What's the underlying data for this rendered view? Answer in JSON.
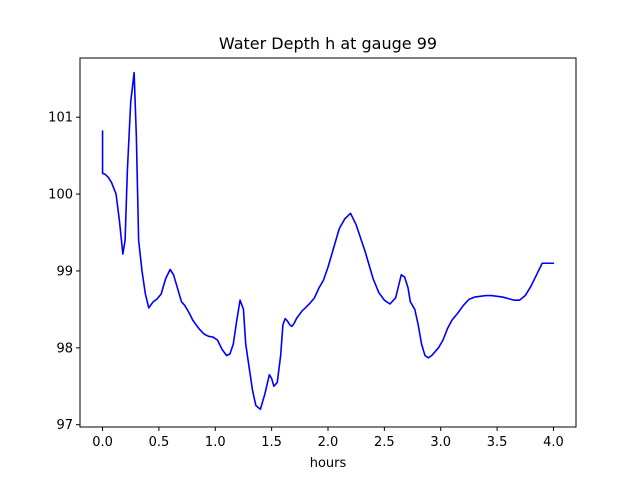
{
  "chart_data": {
    "type": "line",
    "title": "Water Depth h at gauge 99",
    "xlabel": "hours",
    "ylabel": "",
    "xlim": [
      -0.2,
      4.2
    ],
    "ylim": [
      96.97,
      101.77
    ],
    "x_ticks": [
      0.0,
      0.5,
      1.0,
      1.5,
      2.0,
      2.5,
      3.0,
      3.5,
      4.0
    ],
    "x_tick_labels": [
      "0.0",
      "0.5",
      "1.0",
      "1.5",
      "2.0",
      "2.5",
      "3.0",
      "3.5",
      "4.0"
    ],
    "y_ticks": [
      97,
      98,
      99,
      100,
      101
    ],
    "y_tick_labels": [
      "97",
      "98",
      "99",
      "100",
      "101"
    ],
    "grid": false,
    "legend": "none",
    "series": [
      {
        "color": "#0000ff",
        "x": [
          0.0,
          0.0,
          0.02,
          0.05,
          0.08,
          0.12,
          0.15,
          0.18,
          0.2,
          0.22,
          0.25,
          0.28,
          0.3,
          0.32,
          0.35,
          0.38,
          0.41,
          0.45,
          0.48,
          0.52,
          0.56,
          0.6,
          0.63,
          0.66,
          0.7,
          0.73,
          0.77,
          0.8,
          0.83,
          0.86,
          0.9,
          0.94,
          0.98,
          1.02,
          1.06,
          1.1,
          1.13,
          1.16,
          1.19,
          1.22,
          1.25,
          1.27,
          1.29,
          1.31,
          1.33,
          1.36,
          1.4,
          1.44,
          1.48,
          1.5,
          1.52,
          1.55,
          1.58,
          1.6,
          1.62,
          1.64,
          1.66,
          1.68,
          1.7,
          1.72,
          1.74,
          1.77,
          1.8,
          1.84,
          1.88,
          1.92,
          1.96,
          2.0,
          2.05,
          2.1,
          2.15,
          2.2,
          2.25,
          2.3,
          2.33,
          2.36,
          2.4,
          2.45,
          2.5,
          2.55,
          2.6,
          2.65,
          2.68,
          2.71,
          2.73,
          2.75,
          2.77,
          2.8,
          2.83,
          2.86,
          2.89,
          2.92,
          2.95,
          2.98,
          3.02,
          3.06,
          3.1,
          3.15,
          3.2,
          3.25,
          3.3,
          3.35,
          3.4,
          3.45,
          3.5,
          3.55,
          3.6,
          3.65,
          3.7,
          3.75,
          3.8,
          3.85,
          3.9,
          3.95,
          4.0
        ],
        "y": [
          100.82,
          100.27,
          100.26,
          100.22,
          100.15,
          100.0,
          99.65,
          99.22,
          99.4,
          100.3,
          101.2,
          101.58,
          100.75,
          99.4,
          99.0,
          98.7,
          98.52,
          98.6,
          98.63,
          98.7,
          98.9,
          99.02,
          98.95,
          98.8,
          98.6,
          98.55,
          98.45,
          98.36,
          98.3,
          98.24,
          98.18,
          98.15,
          98.14,
          98.1,
          97.98,
          97.9,
          97.92,
          98.05,
          98.35,
          98.62,
          98.5,
          98.05,
          97.85,
          97.65,
          97.45,
          97.25,
          97.2,
          97.4,
          97.65,
          97.6,
          97.5,
          97.55,
          97.9,
          98.3,
          98.38,
          98.35,
          98.3,
          98.28,
          98.32,
          98.38,
          98.42,
          98.48,
          98.52,
          98.58,
          98.65,
          98.78,
          98.88,
          99.05,
          99.3,
          99.55,
          99.68,
          99.75,
          99.6,
          99.38,
          99.25,
          99.1,
          98.9,
          98.72,
          98.62,
          98.57,
          98.65,
          98.95,
          98.92,
          98.78,
          98.6,
          98.55,
          98.5,
          98.3,
          98.05,
          97.9,
          97.87,
          97.9,
          97.95,
          98.0,
          98.1,
          98.25,
          98.36,
          98.45,
          98.55,
          98.63,
          98.66,
          98.67,
          98.68,
          98.68,
          98.67,
          98.66,
          98.64,
          98.62,
          98.62,
          98.68,
          98.8,
          98.95,
          99.1,
          99.1,
          99.1
        ]
      }
    ]
  }
}
